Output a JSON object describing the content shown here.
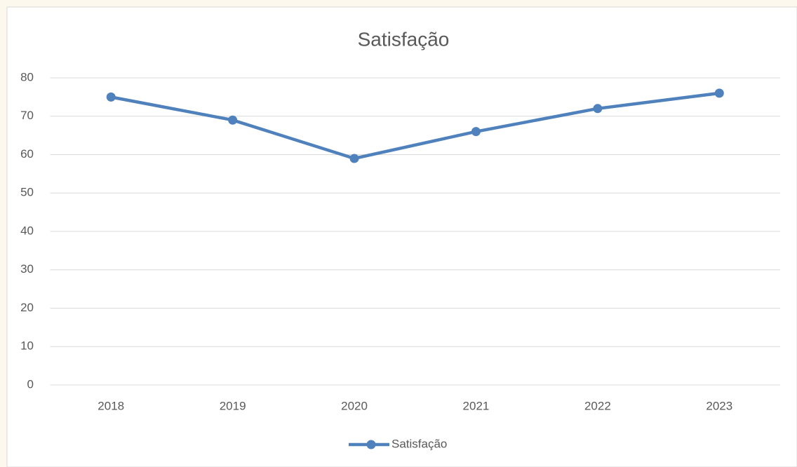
{
  "chart_data": {
    "type": "line",
    "title": "Satisfação",
    "categories": [
      "2018",
      "2019",
      "2020",
      "2021",
      "2022",
      "2023"
    ],
    "series": [
      {
        "name": "Satisfação",
        "color": "#4f81bd",
        "values": [
          75,
          69,
          59,
          66,
          72,
          76
        ]
      }
    ],
    "ylim": [
      0,
      80
    ],
    "yticks": [
      0,
      10,
      20,
      30,
      40,
      50,
      60,
      70,
      80
    ],
    "grid": true,
    "legend": "bottom"
  }
}
